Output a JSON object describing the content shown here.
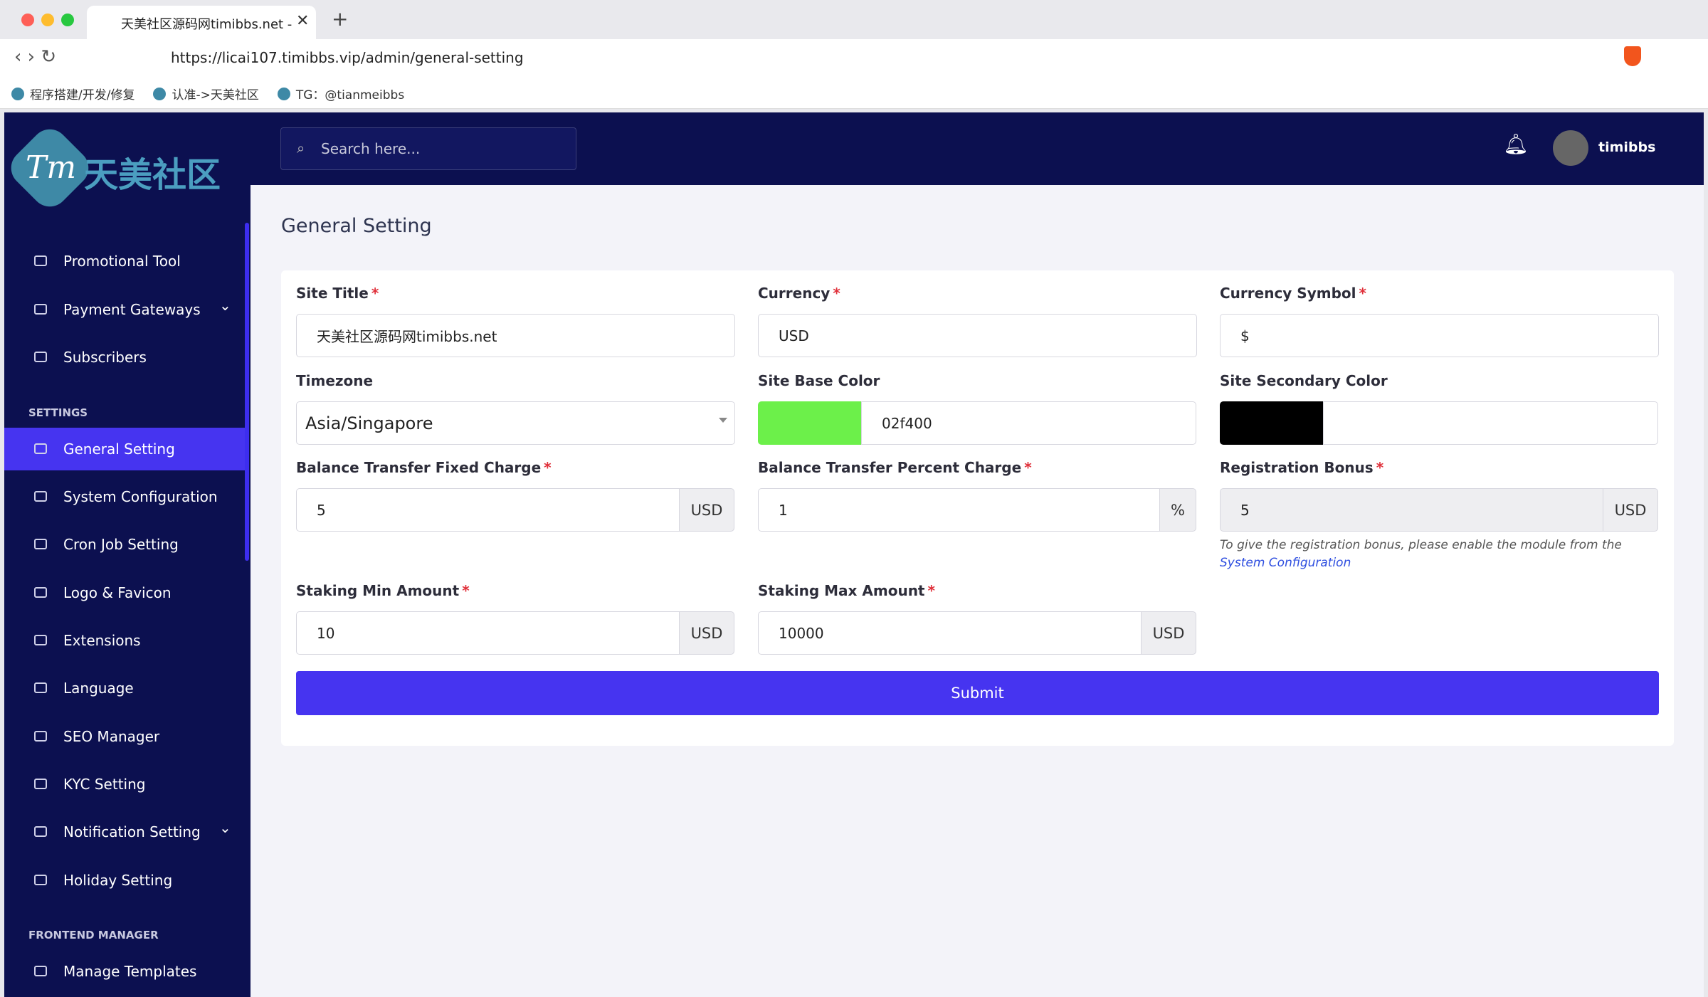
{
  "browser": {
    "tab_title": "天美社区源码网timibbs.net - C",
    "url": "https://licai107.timibbs.vip/admin/general-setting",
    "bookmarks": [
      "程序搭建/开发/修复",
      "认准->天美社区",
      "TG：@tianmeibbs"
    ]
  },
  "sidebar": {
    "logo_mark": "Tm",
    "logo_text": "天美社区",
    "items": [
      {
        "label": "Promotional Tool"
      },
      {
        "label": "Payment Gateways",
        "caret": "⌄"
      },
      {
        "label": "Subscribers"
      },
      {
        "section": "SETTINGS"
      },
      {
        "label": "General Setting",
        "active": true
      },
      {
        "label": "System Configuration"
      },
      {
        "label": "Cron Job Setting"
      },
      {
        "label": "Logo & Favicon"
      },
      {
        "label": "Extensions"
      },
      {
        "label": "Language"
      },
      {
        "label": "SEO Manager"
      },
      {
        "label": "KYC Setting"
      },
      {
        "label": "Notification Setting",
        "caret": "⌄"
      },
      {
        "label": "Holiday Setting"
      },
      {
        "section": "FRONTEND MANAGER"
      },
      {
        "label": "Manage Templates"
      }
    ]
  },
  "header": {
    "search_placeholder": "Search here...",
    "username": "timibbs"
  },
  "page": {
    "title": "General Setting",
    "fields": [
      {
        "label": "Site Title",
        "required": "*",
        "value": "天美社区源码网timibbs.net"
      },
      {
        "label": "Currency",
        "required": "*",
        "value": "USD"
      },
      {
        "label": "Currency Symbol",
        "required": "*",
        "value": "$"
      },
      {
        "label": "Timezone",
        "value": "Asia/Singapore",
        "kind": "select"
      },
      {
        "label": "Site Base Color",
        "value": "02f400",
        "kind": "color",
        "swatch": "#6cf04a"
      },
      {
        "label": "Site Secondary Color",
        "kind": "color",
        "swatch": "#000000"
      },
      {
        "label": "Balance Transfer Fixed Charge",
        "required": "*",
        "value": "5",
        "suffix": "USD"
      },
      {
        "label": "Balance Transfer Percent Charge",
        "required": "*",
        "value": "1",
        "suffix": "%"
      },
      {
        "label": "Registration Bonus",
        "required": "*",
        "value": "5",
        "suffix": "USD",
        "disabled": true
      },
      {
        "label": "Staking Min Amount",
        "required": "*",
        "value": "10",
        "suffix": "USD"
      },
      {
        "label": "Staking Max Amount",
        "required": "*",
        "value": "10000",
        "suffix": "USD"
      }
    ],
    "note": "To give the registration bonus, please enable the module from the",
    "note_link": "System Configuration",
    "submit": "Submit"
  }
}
